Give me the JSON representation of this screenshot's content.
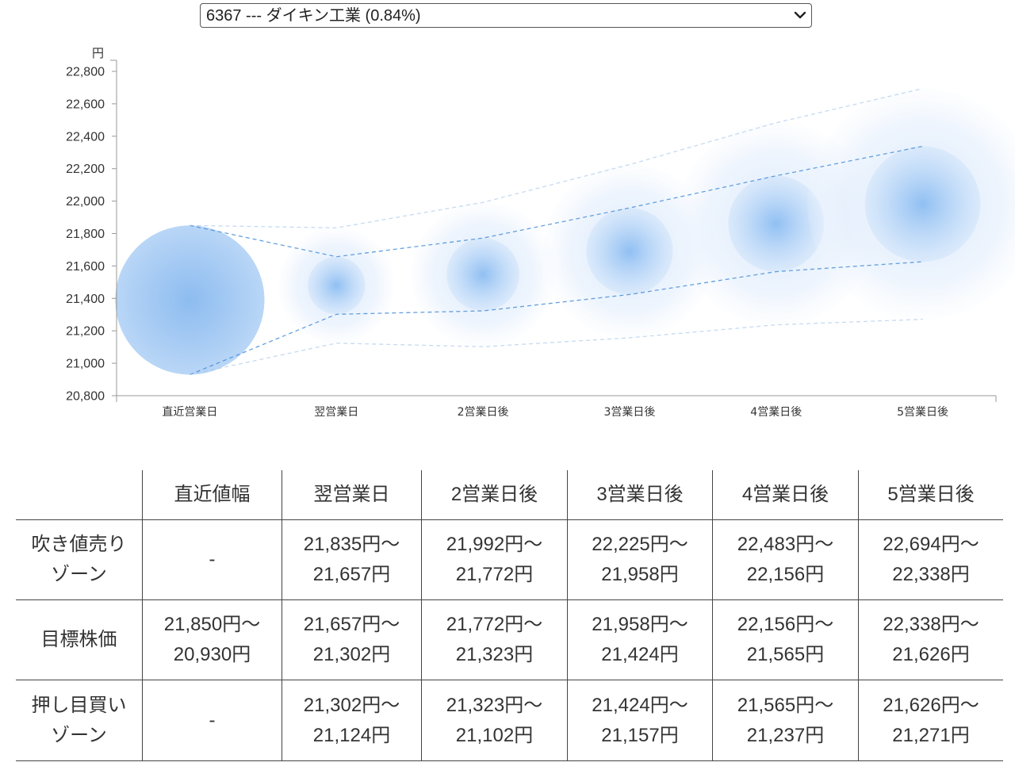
{
  "selector": {
    "value": "6367 --- ダイキン工業 (0.84%)"
  },
  "chart_data": {
    "type": "bubble-range",
    "y_unit": "円",
    "ylim": [
      20800,
      22800
    ],
    "yticks": [
      20800,
      21000,
      21200,
      21400,
      21600,
      21800,
      22000,
      22200,
      22400,
      22600,
      22800
    ],
    "ytick_labels": [
      "20,800",
      "21,000",
      "21,200",
      "21,400",
      "21,600",
      "21,800",
      "22,000",
      "22,200",
      "22,400",
      "22,600",
      "22,800"
    ],
    "categories": [
      "直近営業日",
      "翌営業日",
      "2営業日後",
      "3営業日後",
      "4営業日後",
      "5営業日後"
    ],
    "target_high": [
      21850,
      21657,
      21772,
      21958,
      22156,
      22338
    ],
    "target_low": [
      20930,
      21302,
      21323,
      21424,
      21565,
      21626
    ],
    "outer_high": [
      21850,
      21835,
      21992,
      22225,
      22483,
      22694
    ],
    "outer_low": [
      20930,
      21124,
      21102,
      21157,
      21237,
      21271
    ],
    "bubble_color": "#5b9be6",
    "line_color": "#4a8fd8",
    "grid": false
  },
  "table": {
    "headers": [
      "",
      "直近値幅",
      "翌営業日",
      "2営業日後",
      "3営業日後",
      "4営業日後",
      "5営業日後"
    ],
    "rows": [
      {
        "label": [
          "吹き値売り",
          "ゾーン"
        ],
        "cells": [
          [
            "-"
          ],
          [
            "21,835円〜",
            "21,657円"
          ],
          [
            "21,992円〜",
            "21,772円"
          ],
          [
            "22,225円〜",
            "21,958円"
          ],
          [
            "22,483円〜",
            "22,156円"
          ],
          [
            "22,694円〜",
            "22,338円"
          ]
        ]
      },
      {
        "label": [
          "目標株価"
        ],
        "cells": [
          [
            "21,850円〜",
            "20,930円"
          ],
          [
            "21,657円〜",
            "21,302円"
          ],
          [
            "21,772円〜",
            "21,323円"
          ],
          [
            "21,958円〜",
            "21,424円"
          ],
          [
            "22,156円〜",
            "21,565円"
          ],
          [
            "22,338円〜",
            "21,626円"
          ]
        ]
      },
      {
        "label": [
          "押し目買い",
          "ゾーン"
        ],
        "cells": [
          [
            "-"
          ],
          [
            "21,302円〜",
            "21,124円"
          ],
          [
            "21,323円〜",
            "21,102円"
          ],
          [
            "21,424円〜",
            "21,157円"
          ],
          [
            "21,565円〜",
            "21,237円"
          ],
          [
            "21,626円〜",
            "21,271円"
          ]
        ]
      }
    ]
  }
}
